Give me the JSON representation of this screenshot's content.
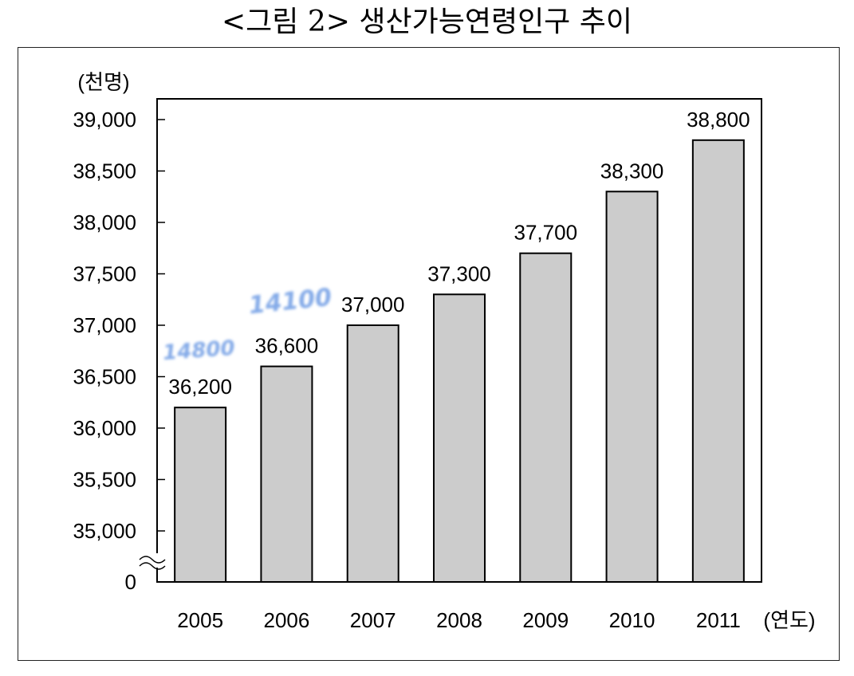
{
  "title": "<그림 2> 생산가능연령인구 추이",
  "chart_data": {
    "type": "bar",
    "title": "<그림 2> 생산가능연령인구 추이",
    "ylabel": "(천명)",
    "xlabel": "(연도)",
    "categories": [
      "2005",
      "2006",
      "2007",
      "2008",
      "2009",
      "2010",
      "2011"
    ],
    "values": [
      36200,
      36600,
      37000,
      37300,
      37700,
      38300,
      38800
    ],
    "value_labels": [
      "36,200",
      "36,600",
      "37,000",
      "37,300",
      "37,700",
      "38,300",
      "38,800"
    ],
    "yticks": [
      35000,
      35500,
      36000,
      36500,
      37000,
      37500,
      38000,
      38500,
      39000
    ],
    "ytick_labels": [
      "35,000",
      "35,500",
      "36,000",
      "36,500",
      "37,000",
      "37,500",
      "38,000",
      "38,500",
      "39,000"
    ],
    "axis_zero_label": "0",
    "axis_break": true,
    "ylim": [
      34750,
      39200
    ],
    "grid": false,
    "bar_color": "#cccccc",
    "watermark_color": "#5b8fe0",
    "annotations": [
      {
        "text": "14800",
        "near": "2005"
      },
      {
        "text": "14100",
        "near": "2006"
      }
    ]
  }
}
